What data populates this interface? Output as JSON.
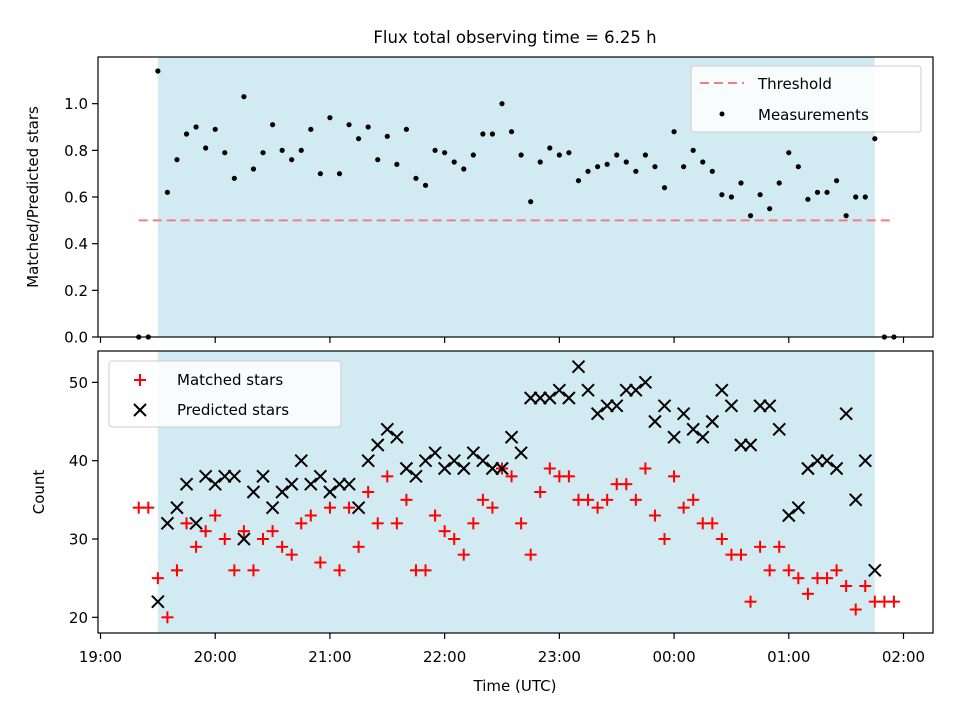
{
  "chart_data": {
    "type": "scatter",
    "title": "Flux total observing time = 6.25 h",
    "colors": {
      "shade": "#add8e6",
      "threshold": "#f08080",
      "measurement": "#000000",
      "matched": "#ff0000",
      "predicted": "#000000"
    },
    "xlabel": "Time (UTC)",
    "x_ticks": [
      "19:00",
      "20:00",
      "21:00",
      "22:00",
      "23:00",
      "00:00",
      "01:00",
      "02:00"
    ],
    "shaded_interval": [
      "19:30",
      "01:45"
    ],
    "panels": [
      {
        "ylabel": "Matched/Predicted stars",
        "ylim": [
          0,
          1.2
        ],
        "y_ticks": [
          "0.0",
          "0.2",
          "0.4",
          "0.6",
          "0.8",
          "1.0"
        ],
        "legend_position": "top-right",
        "threshold": {
          "name": "Threshold",
          "value": 0.5,
          "x_range": [
            "19:20",
            "01:55"
          ]
        },
        "series": [
          {
            "name": "Measurements",
            "marker": "dot",
            "points": [
              [
                "19:20",
                0.0
              ],
              [
                "19:25",
                0.0
              ],
              [
                "19:30",
                1.14
              ],
              [
                "19:35",
                0.62
              ],
              [
                "19:40",
                0.76
              ],
              [
                "19:45",
                0.87
              ],
              [
                "19:50",
                0.9
              ],
              [
                "19:55",
                0.81
              ],
              [
                "20:00",
                0.89
              ],
              [
                "20:05",
                0.79
              ],
              [
                "20:10",
                0.68
              ],
              [
                "20:15",
                1.03
              ],
              [
                "20:20",
                0.72
              ],
              [
                "20:25",
                0.79
              ],
              [
                "20:30",
                0.91
              ],
              [
                "20:35",
                0.8
              ],
              [
                "20:40",
                0.76
              ],
              [
                "20:45",
                0.8
              ],
              [
                "20:50",
                0.89
              ],
              [
                "20:55",
                0.7
              ],
              [
                "21:00",
                0.94
              ],
              [
                "21:05",
                0.7
              ],
              [
                "21:10",
                0.91
              ],
              [
                "21:15",
                0.85
              ],
              [
                "21:20",
                0.9
              ],
              [
                "21:25",
                0.76
              ],
              [
                "21:30",
                0.86
              ],
              [
                "21:35",
                0.74
              ],
              [
                "21:40",
                0.89
              ],
              [
                "21:45",
                0.68
              ],
              [
                "21:50",
                0.65
              ],
              [
                "21:55",
                0.8
              ],
              [
                "22:00",
                0.79
              ],
              [
                "22:05",
                0.75
              ],
              [
                "22:10",
                0.72
              ],
              [
                "22:15",
                0.78
              ],
              [
                "22:20",
                0.87
              ],
              [
                "22:25",
                0.87
              ],
              [
                "22:30",
                1.0
              ],
              [
                "22:35",
                0.88
              ],
              [
                "22:40",
                0.78
              ],
              [
                "22:45",
                0.58
              ],
              [
                "22:50",
                0.75
              ],
              [
                "22:55",
                0.81
              ],
              [
                "23:00",
                0.78
              ],
              [
                "23:05",
                0.79
              ],
              [
                "23:10",
                0.67
              ],
              [
                "23:15",
                0.71
              ],
              [
                "23:20",
                0.73
              ],
              [
                "23:25",
                0.74
              ],
              [
                "23:30",
                0.78
              ],
              [
                "23:35",
                0.75
              ],
              [
                "23:40",
                0.71
              ],
              [
                "23:45",
                0.78
              ],
              [
                "23:50",
                0.73
              ],
              [
                "23:55",
                0.64
              ],
              [
                "00:00",
                0.88
              ],
              [
                "00:05",
                0.73
              ],
              [
                "00:10",
                0.8
              ],
              [
                "00:15",
                0.75
              ],
              [
                "00:20",
                0.71
              ],
              [
                "00:25",
                0.61
              ],
              [
                "00:30",
                0.6
              ],
              [
                "00:35",
                0.66
              ],
              [
                "00:40",
                0.52
              ],
              [
                "00:45",
                0.61
              ],
              [
                "00:50",
                0.55
              ],
              [
                "00:55",
                0.66
              ],
              [
                "01:00",
                0.79
              ],
              [
                "01:05",
                0.73
              ],
              [
                "01:10",
                0.59
              ],
              [
                "01:15",
                0.62
              ],
              [
                "01:20",
                0.62
              ],
              [
                "01:25",
                0.67
              ],
              [
                "01:30",
                0.52
              ],
              [
                "01:35",
                0.6
              ],
              [
                "01:40",
                0.6
              ],
              [
                "01:45",
                0.85
              ],
              [
                "01:50",
                0.0
              ],
              [
                "01:55",
                0.0
              ]
            ]
          }
        ]
      },
      {
        "ylabel": "Count",
        "ylim": [
          18,
          54
        ],
        "y_ticks": [
          "20",
          "30",
          "40",
          "50"
        ],
        "legend_position": "top-left",
        "series": [
          {
            "name": "Matched stars",
            "marker": "plus",
            "points": [
              [
                "19:20",
                34
              ],
              [
                "19:25",
                34
              ],
              [
                "19:30",
                25
              ],
              [
                "19:35",
                20
              ],
              [
                "19:40",
                26
              ],
              [
                "19:45",
                32
              ],
              [
                "19:50",
                29
              ],
              [
                "19:55",
                31
              ],
              [
                "20:00",
                33
              ],
              [
                "20:05",
                30
              ],
              [
                "20:10",
                26
              ],
              [
                "20:15",
                31
              ],
              [
                "20:20",
                26
              ],
              [
                "20:25",
                30
              ],
              [
                "20:30",
                31
              ],
              [
                "20:35",
                29
              ],
              [
                "20:40",
                28
              ],
              [
                "20:45",
                32
              ],
              [
                "20:50",
                33
              ],
              [
                "20:55",
                27
              ],
              [
                "21:00",
                34
              ],
              [
                "21:05",
                26
              ],
              [
                "21:10",
                34
              ],
              [
                "21:15",
                29
              ],
              [
                "21:20",
                36
              ],
              [
                "21:25",
                32
              ],
              [
                "21:30",
                38
              ],
              [
                "21:35",
                32
              ],
              [
                "21:40",
                35
              ],
              [
                "21:45",
                26
              ],
              [
                "21:50",
                26
              ],
              [
                "21:55",
                33
              ],
              [
                "22:00",
                31
              ],
              [
                "22:05",
                30
              ],
              [
                "22:10",
                28
              ],
              [
                "22:15",
                32
              ],
              [
                "22:20",
                35
              ],
              [
                "22:25",
                34
              ],
              [
                "22:30",
                39
              ],
              [
                "22:35",
                38
              ],
              [
                "22:40",
                32
              ],
              [
                "22:45",
                28
              ],
              [
                "22:50",
                36
              ],
              [
                "22:55",
                39
              ],
              [
                "23:00",
                38
              ],
              [
                "23:05",
                38
              ],
              [
                "23:10",
                35
              ],
              [
                "23:15",
                35
              ],
              [
                "23:20",
                34
              ],
              [
                "23:25",
                35
              ],
              [
                "23:30",
                37
              ],
              [
                "23:35",
                37
              ],
              [
                "23:40",
                35
              ],
              [
                "23:45",
                39
              ],
              [
                "23:50",
                33
              ],
              [
                "23:55",
                30
              ],
              [
                "00:00",
                38
              ],
              [
                "00:05",
                34
              ],
              [
                "00:10",
                35
              ],
              [
                "00:15",
                32
              ],
              [
                "00:20",
                32
              ],
              [
                "00:25",
                30
              ],
              [
                "00:30",
                28
              ],
              [
                "00:35",
                28
              ],
              [
                "00:40",
                22
              ],
              [
                "00:45",
                29
              ],
              [
                "00:50",
                26
              ],
              [
                "00:55",
                29
              ],
              [
                "01:00",
                26
              ],
              [
                "01:05",
                25
              ],
              [
                "01:10",
                23
              ],
              [
                "01:15",
                25
              ],
              [
                "01:20",
                25
              ],
              [
                "01:25",
                26
              ],
              [
                "01:30",
                24
              ],
              [
                "01:35",
                21
              ],
              [
                "01:40",
                24
              ],
              [
                "01:45",
                22
              ],
              [
                "01:50",
                22
              ],
              [
                "01:55",
                22
              ]
            ]
          },
          {
            "name": "Predicted stars",
            "marker": "x",
            "points": [
              [
                "19:30",
                22
              ],
              [
                "19:35",
                32
              ],
              [
                "19:40",
                34
              ],
              [
                "19:45",
                37
              ],
              [
                "19:50",
                32
              ],
              [
                "19:55",
                38
              ],
              [
                "20:00",
                37
              ],
              [
                "20:05",
                38
              ],
              [
                "20:10",
                38
              ],
              [
                "20:15",
                30
              ],
              [
                "20:20",
                36
              ],
              [
                "20:25",
                38
              ],
              [
                "20:30",
                34
              ],
              [
                "20:35",
                36
              ],
              [
                "20:40",
                37
              ],
              [
                "20:45",
                40
              ],
              [
                "20:50",
                37
              ],
              [
                "20:55",
                38
              ],
              [
                "21:00",
                36
              ],
              [
                "21:05",
                37
              ],
              [
                "21:10",
                37
              ],
              [
                "21:15",
                34
              ],
              [
                "21:20",
                40
              ],
              [
                "21:25",
                42
              ],
              [
                "21:30",
                44
              ],
              [
                "21:35",
                43
              ],
              [
                "21:40",
                39
              ],
              [
                "21:45",
                38
              ],
              [
                "21:50",
                40
              ],
              [
                "21:55",
                41
              ],
              [
                "22:00",
                39
              ],
              [
                "22:05",
                40
              ],
              [
                "22:10",
                39
              ],
              [
                "22:15",
                41
              ],
              [
                "22:20",
                40
              ],
              [
                "22:25",
                39
              ],
              [
                "22:30",
                39
              ],
              [
                "22:35",
                43
              ],
              [
                "22:40",
                41
              ],
              [
                "22:45",
                48
              ],
              [
                "22:50",
                48
              ],
              [
                "22:55",
                48
              ],
              [
                "23:00",
                49
              ],
              [
                "23:05",
                48
              ],
              [
                "23:10",
                52
              ],
              [
                "23:15",
                49
              ],
              [
                "23:20",
                46
              ],
              [
                "23:25",
                47
              ],
              [
                "23:30",
                47
              ],
              [
                "23:35",
                49
              ],
              [
                "23:40",
                49
              ],
              [
                "23:45",
                50
              ],
              [
                "23:50",
                45
              ],
              [
                "23:55",
                47
              ],
              [
                "00:00",
                43
              ],
              [
                "00:05",
                46
              ],
              [
                "00:10",
                44
              ],
              [
                "00:15",
                43
              ],
              [
                "00:20",
                45
              ],
              [
                "00:25",
                49
              ],
              [
                "00:30",
                47
              ],
              [
                "00:35",
                42
              ],
              [
                "00:40",
                42
              ],
              [
                "00:45",
                47
              ],
              [
                "00:50",
                47
              ],
              [
                "00:55",
                44
              ],
              [
                "01:00",
                33
              ],
              [
                "01:05",
                34
              ],
              [
                "01:10",
                39
              ],
              [
                "01:15",
                40
              ],
              [
                "01:20",
                40
              ],
              [
                "01:25",
                39
              ],
              [
                "01:30",
                46
              ],
              [
                "01:35",
                35
              ],
              [
                "01:40",
                40
              ],
              [
                "01:45",
                26
              ]
            ]
          }
        ]
      }
    ]
  }
}
